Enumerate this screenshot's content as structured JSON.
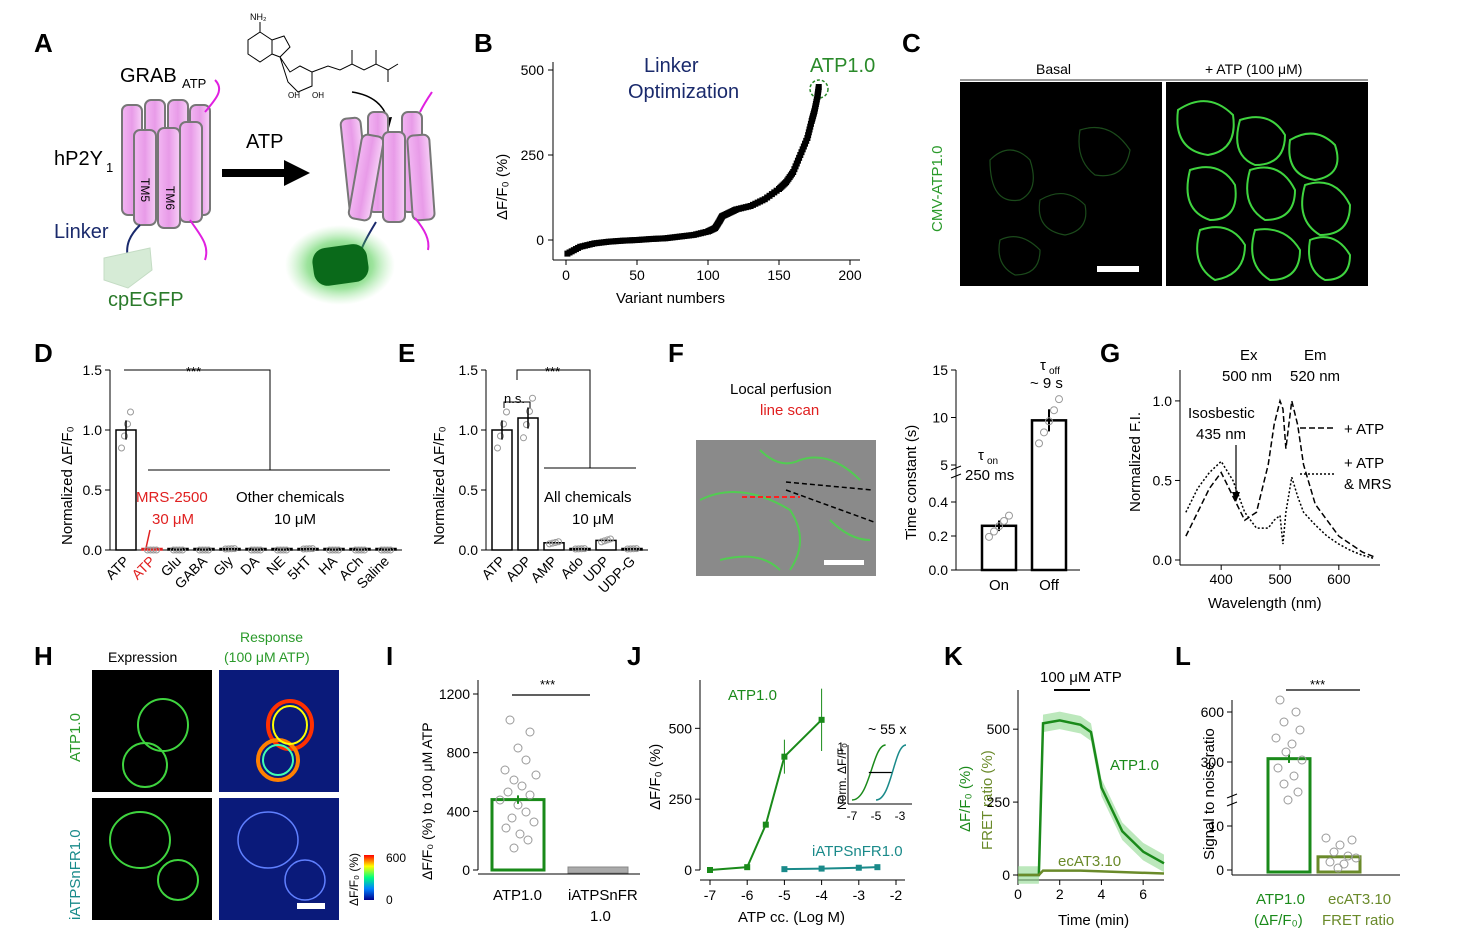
{
  "panels": {
    "A": {
      "letter": "A",
      "grab_label": "GRAB",
      "grab_sub": "ATP",
      "receptor_label": "hP2Y",
      "receptor_sub": "1",
      "tm5": "TM5",
      "tm6": "TM6",
      "linker": "Linker",
      "cpegfp": "cpEGFP",
      "atp_arrow": "ATP",
      "nh2": "NH₂",
      "oh": "OH"
    },
    "B": {
      "letter": "B",
      "annotation_line1": "Linker",
      "annotation_line2": "Optimization",
      "highlight": "ATP1.0",
      "ylabel": "ΔF/F₀ (%)",
      "xlabel": "Variant numbers",
      "xticks": [
        "0",
        "50",
        "100",
        "150",
        "200"
      ],
      "yticks": [
        "0",
        "250",
        "500"
      ]
    },
    "C": {
      "letter": "C",
      "col1": "Basal",
      "col2": "+ ATP (100 μM)",
      "row": "CMV-ATP1.0"
    },
    "D": {
      "letter": "D",
      "ylabel": "Normalized ΔF/F₀",
      "sig": "***",
      "mrs_line1": "MRS-2500",
      "mrs_line2": "30 μM",
      "other_line1": "Other chemicals",
      "other_line2": "10 μM",
      "categories": [
        "ATP",
        "ATP",
        "Glu",
        "GABA",
        "Gly",
        "DA",
        "NE",
        "5HT",
        "HA",
        "ACh",
        "Saline"
      ],
      "yticks": [
        "0.0",
        "0.5",
        "1.0",
        "1.5"
      ]
    },
    "E": {
      "letter": "E",
      "ylabel": "Normalized ΔF/F₀",
      "ns": "n.s.",
      "sig": "***",
      "all_line1": "All chemicals",
      "all_line2": "10 μM",
      "categories": [
        "ATP",
        "ADP",
        "AMP",
        "Ado",
        "UDP",
        "UDP-G"
      ],
      "yticks": [
        "0.0",
        "0.5",
        "1.0",
        "1.5"
      ]
    },
    "F": {
      "letter": "F",
      "title_line1": "Local perfusion",
      "title_line2": "line scan",
      "ylabel": "Time constant (s)",
      "tau_on": "τ",
      "tau_on_sub": "on",
      "tau_on_value": "250 ms",
      "tau_off": "τ",
      "tau_off_sub": "off",
      "tau_off_value": "~ 9 s",
      "categories": [
        "On",
        "Off"
      ],
      "yticks_low": [
        "0.0",
        "0.2",
        "0.4"
      ],
      "yticks_high": [
        "5",
        "10",
        "15"
      ]
    },
    "G": {
      "letter": "G",
      "ylabel": "Normalized F.I.",
      "xlabel": "Wavelength (nm)",
      "ex_line1": "Ex",
      "ex_line2": "500 nm",
      "em_line1": "Em",
      "em_line2": "520 nm",
      "iso_line1": "Isosbestic",
      "iso_line2": "435 nm",
      "legend1": "+ ATP",
      "legend2_line1": "+ ATP",
      "legend2_line2": "& MRS",
      "xticks": [
        "400",
        "500",
        "600"
      ],
      "yticks": [
        "0.0",
        "0.5",
        "1.0"
      ]
    },
    "H": {
      "letter": "H",
      "col1": "Expression",
      "col2_line1": "Response",
      "col2_line2": "(100 μM ATP)",
      "row1": "ATP1.0",
      "row2": "iATPSnFR1.0",
      "cbar_label": "ΔF/F₀ (%)",
      "cbar_max": "600",
      "cbar_min": "0"
    },
    "I": {
      "letter": "I",
      "ylabel": "ΔF/F₀ (%) to 100 μM ATP",
      "sig": "***",
      "cat1": "ATP1.0",
      "cat2_line1": "iATPSnFR",
      "cat2_line2": "1.0",
      "yticks": [
        "0",
        "400",
        "800",
        "1200"
      ]
    },
    "J": {
      "letter": "J",
      "ylabel": "ΔF/F₀ (%)",
      "xlabel": "ATP cc. (Log M)",
      "label_atp": "ATP1.0",
      "label_iatp": "iATPSnFR1.0",
      "fold": "~ 55 x",
      "inset_ylabel": "Norm. ΔF/F₀",
      "inset_xticks": [
        "-7",
        "-5",
        "-3"
      ],
      "inset_yticks": [
        "0",
        "1"
      ],
      "xticks": [
        "-7",
        "-6",
        "-5",
        "-4",
        "-3",
        "-2"
      ],
      "yticks": [
        "0",
        "250",
        "500"
      ]
    },
    "K": {
      "letter": "K",
      "stim": "100 μM ATP",
      "ylabel1": "ΔF/F₀ (%)",
      "ylabel2": "FRET ratio (%)",
      "xlabel": "Time (min)",
      "label_atp": "ATP1.0",
      "label_ec": "ecAT3.10",
      "xticks": [
        "0",
        "2",
        "4",
        "6"
      ],
      "yticks": [
        "0",
        "250",
        "500"
      ]
    },
    "L": {
      "letter": "L",
      "ylabel": "Signal to noise ratio",
      "sig": "***",
      "cat1_line1": "ATP1.0",
      "cat1_line2": "(ΔF/F₀)",
      "cat2_line1": "ecAT3.10",
      "cat2_line2": "FRET ratio",
      "yticks": [
        "0",
        "10",
        "300",
        "600"
      ]
    }
  },
  "chart_data": [
    {
      "panel": "B",
      "type": "scatter",
      "xlabel": "Variant numbers",
      "ylabel": "ΔF/F₀ (%)",
      "xlim": [
        0,
        200
      ],
      "ylim": [
        -50,
        500
      ],
      "x": [
        1,
        10,
        20,
        30,
        40,
        50,
        60,
        70,
        80,
        90,
        100,
        105,
        108,
        110,
        115,
        120,
        130,
        140,
        150,
        155,
        160,
        165,
        170,
        173,
        175,
        177,
        178
      ],
      "values": [
        -40,
        -20,
        -10,
        -5,
        -2,
        0,
        3,
        5,
        10,
        15,
        25,
        35,
        55,
        70,
        80,
        90,
        100,
        120,
        150,
        170,
        200,
        250,
        300,
        350,
        380,
        420,
        450
      ]
    },
    {
      "panel": "D",
      "type": "bar",
      "categories": [
        "ATP",
        "ATP",
        "Glu",
        "GABA",
        "Gly",
        "DA",
        "NE",
        "5HT",
        "HA",
        "ACh",
        "Saline"
      ],
      "values": [
        1.0,
        0.0,
        0.0,
        0.0,
        0.01,
        0.0,
        0.0,
        0.01,
        0.0,
        0.0,
        0.0
      ],
      "ylim": [
        0,
        1.5
      ]
    },
    {
      "panel": "E",
      "type": "bar",
      "categories": [
        "ATP",
        "ADP",
        "AMP",
        "Ado",
        "UDP",
        "UDP-G"
      ],
      "values": [
        1.0,
        1.1,
        0.06,
        0.01,
        0.08,
        0.01
      ],
      "ylim": [
        0,
        1.5
      ]
    },
    {
      "panel": "F",
      "type": "bar",
      "categories": [
        "On",
        "Off"
      ],
      "values": [
        0.26,
        9.7
      ],
      "ylabel": "Time constant (s)"
    },
    {
      "panel": "G",
      "type": "line",
      "xlabel": "Wavelength (nm)",
      "ylabel": "Normalized F.I.",
      "xlim": [
        330,
        670
      ],
      "ylim": [
        0,
        1.1
      ],
      "series": [
        {
          "name": "+ ATP",
          "x": [
            340,
            360,
            380,
            400,
            420,
            440,
            460,
            480,
            490,
            500,
            505,
            510,
            520,
            530,
            540,
            560,
            580,
            600,
            620,
            640,
            660
          ],
          "values": [
            0.15,
            0.3,
            0.45,
            0.55,
            0.4,
            0.25,
            0.3,
            0.6,
            0.85,
            1.0,
            0.95,
            0.7,
            1.0,
            0.85,
            0.6,
            0.35,
            0.25,
            0.15,
            0.1,
            0.05,
            0.02
          ]
        },
        {
          "name": "+ ATP & MRS",
          "x": [
            340,
            360,
            380,
            400,
            420,
            440,
            460,
            480,
            490,
            500,
            505,
            510,
            520,
            530,
            540,
            560,
            580,
            600,
            620,
            640,
            660
          ],
          "values": [
            0.3,
            0.45,
            0.55,
            0.62,
            0.5,
            0.3,
            0.2,
            0.2,
            0.25,
            0.28,
            0.1,
            0.3,
            0.52,
            0.4,
            0.3,
            0.22,
            0.15,
            0.1,
            0.06,
            0.03,
            0.01
          ]
        }
      ]
    },
    {
      "panel": "I",
      "type": "bar",
      "categories": [
        "ATP1.0",
        "iATPSnFR 1.0"
      ],
      "values": [
        480,
        0
      ],
      "ylim": [
        0,
        1200
      ]
    },
    {
      "panel": "J",
      "type": "line",
      "xlabel": "ATP cc. (Log M)",
      "ylabel": "ΔF/F₀ (%)",
      "xlim": [
        -7,
        -2
      ],
      "ylim": [
        0,
        600
      ],
      "series": [
        {
          "name": "ATP1.0",
          "x": [
            -7,
            -6,
            -5.5,
            -5,
            -4
          ],
          "values": [
            0,
            10,
            160,
            400,
            530
          ]
        },
        {
          "name": "iATPSnFR1.0",
          "x": [
            -5,
            -4,
            -3,
            -2.5
          ],
          "values": [
            3,
            5,
            8,
            10
          ]
        }
      ]
    },
    {
      "panel": "K",
      "type": "line",
      "xlabel": "Time (min)",
      "xlim": [
        0,
        7
      ],
      "ylim": [
        0,
        600
      ],
      "series": [
        {
          "name": "ATP1.0",
          "x": [
            0,
            1,
            1.2,
            2,
            3,
            3.5,
            4,
            5,
            6,
            7
          ],
          "values": [
            0,
            0,
            520,
            530,
            515,
            490,
            300,
            150,
            80,
            40
          ]
        },
        {
          "name": "ecAT3.10",
          "x": [
            0,
            1,
            1.2,
            3,
            7
          ],
          "values": [
            0,
            0,
            15,
            15,
            5
          ]
        }
      ]
    },
    {
      "panel": "L",
      "type": "bar",
      "categories": [
        "ATP1.0 (ΔF/F₀)",
        "ecAT3.10 FRET ratio"
      ],
      "values": [
        320,
        3
      ]
    }
  ]
}
